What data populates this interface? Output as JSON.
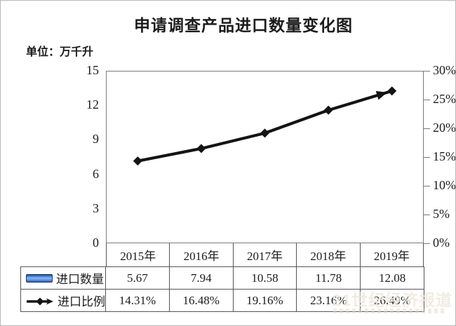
{
  "title": "申请调查产品进口数量变化图",
  "unit_label": "单位：万千升",
  "watermark": "21世纪经济报道",
  "chart_data": {
    "type": "bar",
    "combo": [
      "bar",
      "line"
    ],
    "title": "申请调查产品进口数量变化图",
    "unit": "万千升",
    "categories": [
      "2015年",
      "2016年",
      "2017年",
      "2018年",
      "2019年"
    ],
    "series": [
      {
        "name": "进口数量",
        "type": "bar",
        "axis": "left",
        "values": [
          5.67,
          7.94,
          10.58,
          11.78,
          12.08
        ],
        "display": [
          "5.67",
          "7.94",
          "10.58",
          "11.78",
          "12.08"
        ]
      },
      {
        "name": "进口比例",
        "type": "line",
        "axis": "right",
        "values": [
          14.31,
          16.48,
          19.16,
          23.16,
          26.49
        ],
        "display": [
          "14.31%",
          "16.48%",
          "19.16%",
          "23.16%",
          "26.49%"
        ]
      }
    ],
    "left_axis": {
      "min": 0,
      "max": 15,
      "step": 3,
      "ticks": [
        "15",
        "12",
        "9",
        "6",
        "3",
        "0"
      ]
    },
    "right_axis": {
      "min": 0,
      "max": 30,
      "step": 5,
      "ticks": [
        "30%",
        "25%",
        "20%",
        "15%",
        "10%",
        "5%",
        "0%"
      ]
    },
    "grid": true,
    "legend_position": "bottom-table-left",
    "colors": {
      "bar_center": "#4c88e8",
      "bar_edge": "#1b4a9b",
      "line": "#141414",
      "grid": "#a0a0a0",
      "border": "#555555"
    }
  }
}
